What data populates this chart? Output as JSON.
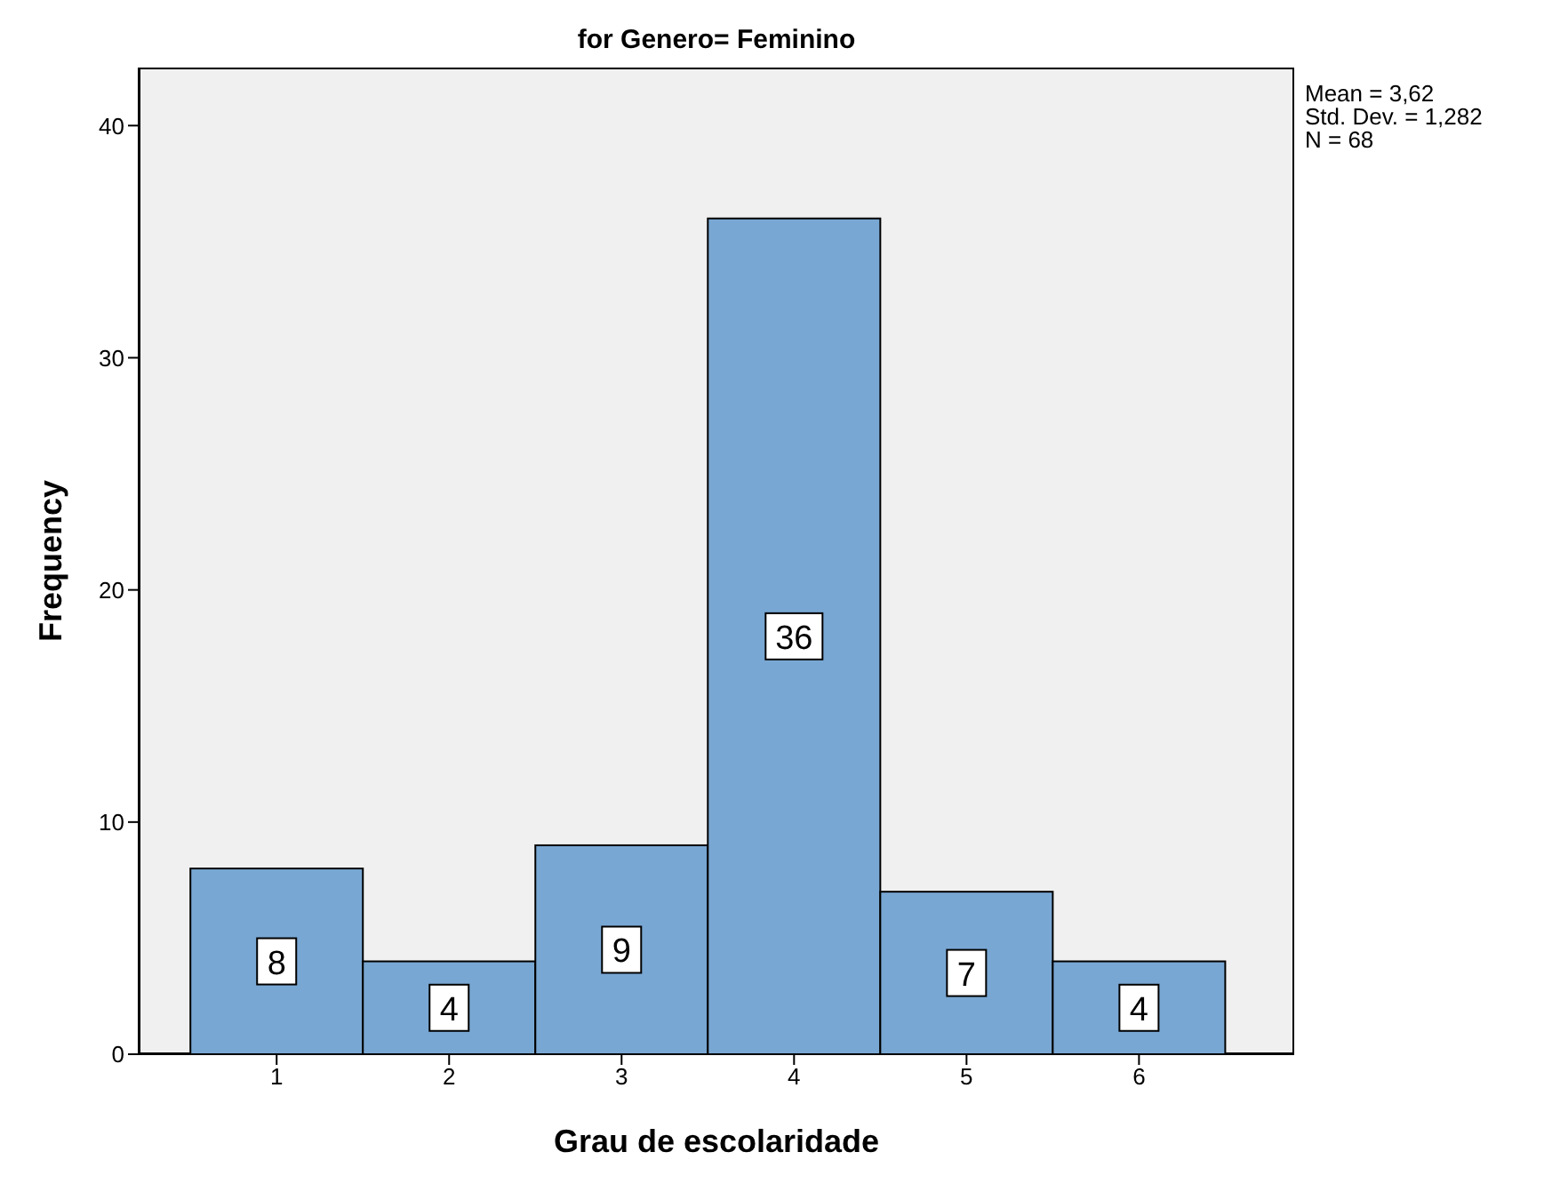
{
  "chart_data": {
    "type": "histogram",
    "title": "for Genero= Feminino",
    "xlabel": "Grau de escolaridade",
    "ylabel": "Frequency",
    "bins": [
      0.5,
      1.5,
      2.5,
      3.5,
      4.5,
      5.5,
      6.5
    ],
    "values": [
      8,
      4,
      9,
      36,
      7,
      4
    ],
    "color": "#79a7d3",
    "xlim": [
      0.2,
      6.9
    ],
    "xticks": [
      1,
      2,
      3,
      4,
      5,
      6
    ],
    "ylim": [
      0,
      42.5
    ],
    "yticks": [
      0,
      10,
      20,
      30,
      40
    ],
    "data_labels": true,
    "annotations": [
      "Mean = 3,62",
      "Std. Dev. = 1,282",
      "N = 68"
    ]
  }
}
